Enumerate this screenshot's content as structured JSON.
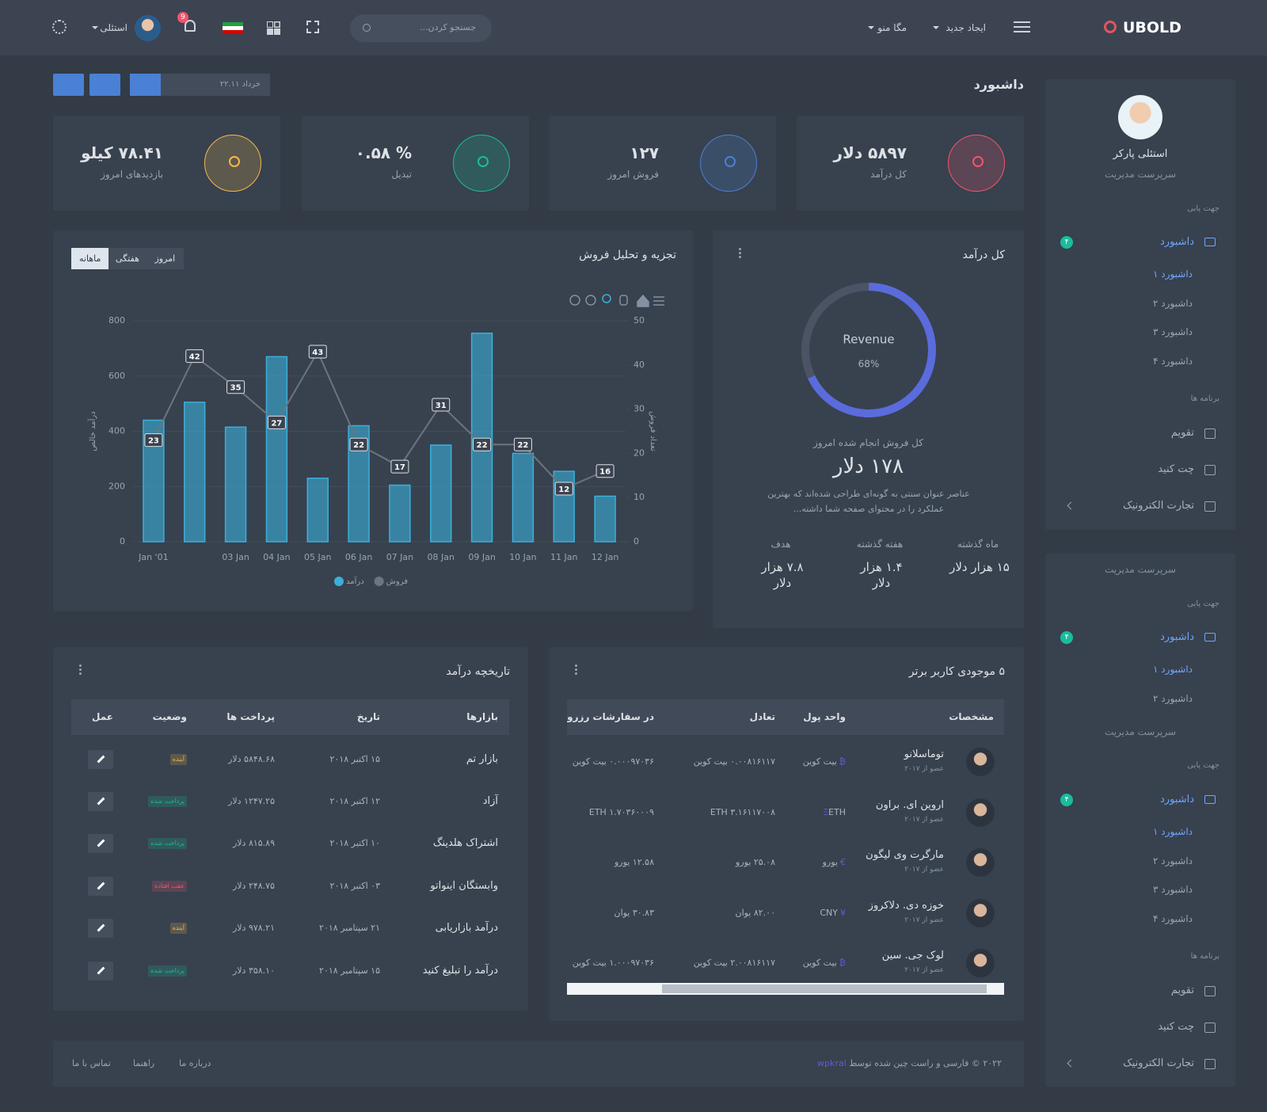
{
  "topbar": {
    "logo": "UBOLD",
    "menu": [
      "ایجاد جدید",
      "مگا منو"
    ],
    "search_placeholder": "جستجو کردن...",
    "user": "استئلی",
    "notifications": "9"
  },
  "sidebar": {
    "name": "استئلی پارکر",
    "role": "سرپرست مدیریت",
    "nav_title": "جهت یابی",
    "dashboard": "داشبورد",
    "badge": "۴",
    "dashboards": [
      "داشبورد ۱",
      "داشبورد ۲",
      "داشبورد ۳",
      "داشبورد ۴"
    ],
    "apps_title": "برنامه ها",
    "apps": [
      "تقویم",
      "چت کنید",
      "تجارت الکترونیک"
    ]
  },
  "sidebar_repeat": {
    "blocks": [
      {
        "role": "سرپرست مدیریت",
        "nav_title": "جهت یابی",
        "dashboard": "داشبورد",
        "badge": "۴",
        "dashboards": [
          "داشبورد ۱",
          "داشبورد ۲"
        ]
      },
      {
        "role": "سرپرست مدیریت",
        "nav_title": "جهت یابی",
        "dashboard": "داشبورد",
        "badge": "۴",
        "dashboards": [
          "داشبورد ۱",
          "داشبورد ۲",
          "داشبورد ۳",
          "داشبورد ۴"
        ]
      }
    ],
    "apps_title": "برنامه ها",
    "apps": [
      "تقویم",
      "چت کنید",
      "تجارت الکترونیک"
    ]
  },
  "header": {
    "title": "داشبورد",
    "date": "خرداد ۲۲.۱۱"
  },
  "stats": [
    {
      "value": "۵۸۹۷ دلار",
      "label": "کل درآمد",
      "color": "#f1556c"
    },
    {
      "value": "۱۲۷",
      "label": "فروش امروز",
      "color": "#4a81d4"
    },
    {
      "value": "% ۰.۵۸",
      "label": "تبدیل",
      "color": "#1abc9c"
    },
    {
      "value": "۷۸.۴۱ کیلو",
      "label": "بازدیدهای امروز",
      "color": "#f7b84b"
    }
  ],
  "sales_card": {
    "title": "تجزیه و تحلیل فروش",
    "tabs": [
      "امروز",
      "هفتگی",
      "ماهانه"
    ]
  },
  "chart_data": [
    {
      "type": "combo",
      "categories": [
        "Jan '01",
        null,
        "03 Jan",
        "04 Jan",
        "05 Jan",
        "06 Jan",
        "07 Jan",
        "08 Jan",
        "09 Jan",
        "10 Jan",
        "11 Jan",
        "12 Jan"
      ],
      "series": [
        {
          "name": "درآمد",
          "type": "bar",
          "color": "#3bafda",
          "values": [
            440,
            505,
            415,
            670,
            230,
            420,
            205,
            350,
            755,
            320,
            255,
            165
          ]
        },
        {
          "name": "فروش",
          "type": "line",
          "axis": "y2",
          "color": "#6c757d",
          "values": [
            23,
            42,
            35,
            27,
            43,
            22,
            17,
            31,
            22,
            22,
            12,
            16
          ]
        }
      ],
      "ylabel": "درآمد خالص",
      "y2label": "تعداد فروش",
      "ylim": [
        0,
        800
      ],
      "yticks": [
        0,
        200,
        400,
        600,
        800
      ],
      "y2lim": [
        0,
        50
      ],
      "y2ticks": [
        0,
        10,
        20,
        30,
        40,
        50
      ],
      "grid": true,
      "legend": "bottom"
    },
    {
      "type": "donut",
      "categories": [
        "Revenue"
      ],
      "values": [
        68
      ],
      "value_labels": [
        "68%"
      ],
      "ylim": [
        0,
        100
      ],
      "color": "#5a6bdc",
      "track_color": "#4b5465"
    }
  ],
  "revenue_card": {
    "title": "کل درآمد",
    "caption": "کل فروش انجام شده امروز",
    "amount": "۱۷۸ دلار",
    "description": "عناصر عنوان سنتی به گونه‌ای طراحی شده‌اند که بهترین عملکرد را در محتوای صفحه شما داشته...",
    "stats": [
      {
        "label": "ماه گذشته",
        "value": "۱۵ هزار دلار",
        "trend": "down"
      },
      {
        "label": "هفته گذشته",
        "value": "۱.۴ هزار دلار",
        "trend": "up"
      },
      {
        "label": "هدف",
        "value": "۷.۸ هزار دلار",
        "trend": "down"
      }
    ]
  },
  "top_users": {
    "title": "۵ موجودی کاربر برتر",
    "columns": [
      "مشخصات",
      "واحد پول",
      "تعادل",
      "در سفارشات رزرو شده"
    ],
    "rows": [
      {
        "name": "توماسلانو",
        "since": "عضو از ۲۰۱۷",
        "symbol": "₿",
        "currency": "بیت کوین",
        "balance": "۰.۰۰۸۱۶۱۱۷ بیت کوین",
        "reserved": "۰.۰۰۰۹۷۰۳۶ بیت کوین"
      },
      {
        "name": "اروین ای. براون",
        "since": "عضو از ۲۰۱۷",
        "symbol": "Ξ",
        "currency": "ETH",
        "balance": "ETH ۳.۱۶۱۱۷۰۰۸",
        "reserved": "ETH ۱.۷۰۳۶۰۰۰۹"
      },
      {
        "name": "مارگرت وی لیگون",
        "since": "عضو از ۲۰۱۷",
        "symbol": "€",
        "currency": "یورو",
        "balance": "۲۵.۰۸ یورو",
        "reserved": "۱۲.۵۸ یورو"
      },
      {
        "name": "خوزه دی. دلاکروز",
        "since": "عضو از ۲۰۱۷",
        "symbol": "¥",
        "currency": "CNY",
        "balance": "۸۲.۰۰ یوان",
        "reserved": "۳۰.۸۳ یوان"
      },
      {
        "name": "لوک جی. سین",
        "since": "عضو از ۲۰۱۷",
        "symbol": "₿",
        "currency": "بیت کوین",
        "balance": "۲.۰۰۸۱۶۱۱۷ بیت کوین",
        "reserved": "۱.۰۰۰۹۷۰۳۶ بیت کوین"
      }
    ]
  },
  "revenue_history": {
    "title": "تاریخچه درآمد",
    "columns": [
      "بازارها",
      "تاریخ",
      "پرداخت ها",
      "وضعیت",
      "عمل"
    ],
    "rows": [
      {
        "market": "بازار تم",
        "date": "۱۵ اکتبر ۲۰۱۸",
        "payment": "۵۸۴۸.۶۸ دلار",
        "status": "آینده",
        "status_color": "#f7b84b"
      },
      {
        "market": "آزاد",
        "date": "۱۲ اکتبر ۲۰۱۸",
        "payment": "۱۲۴۷.۲۵ دلار",
        "status": "پرداخت شده",
        "status_color": "#1abc9c"
      },
      {
        "market": "اشتراک هلدینگ",
        "date": "۱۰ اکتبر ۲۰۱۸",
        "payment": "۸۱۵.۸۹ دلار",
        "status": "پرداخت شده",
        "status_color": "#1abc9c"
      },
      {
        "market": "وابستگان اینواتو",
        "date": "۰۳ اکتبر ۲۰۱۸",
        "payment": "۲۴۸.۷۵ دلار",
        "status": "عقب افتاده",
        "status_color": "#f1556c"
      },
      {
        "market": "درآمد بازاریابی",
        "date": "۲۱ سپتامبر ۲۰۱۸",
        "payment": "۹۷۸.۲۱ دلار",
        "status": "آینده",
        "status_color": "#f7b84b"
      },
      {
        "market": "درآمد را تبلیغ کنید",
        "date": "۱۵ سپتامبر ۲۰۱۸",
        "payment": "۳۵۸.۱۰ دلار",
        "status": "پرداخت شده",
        "status_color": "#1abc9c"
      }
    ]
  },
  "footer": {
    "copyright": "۲۰۲۲ © فارسی و راست چین شده توسط",
    "author": "wpkral",
    "links": [
      "درباره ما",
      "راهنما",
      "تماس با ما"
    ]
  }
}
